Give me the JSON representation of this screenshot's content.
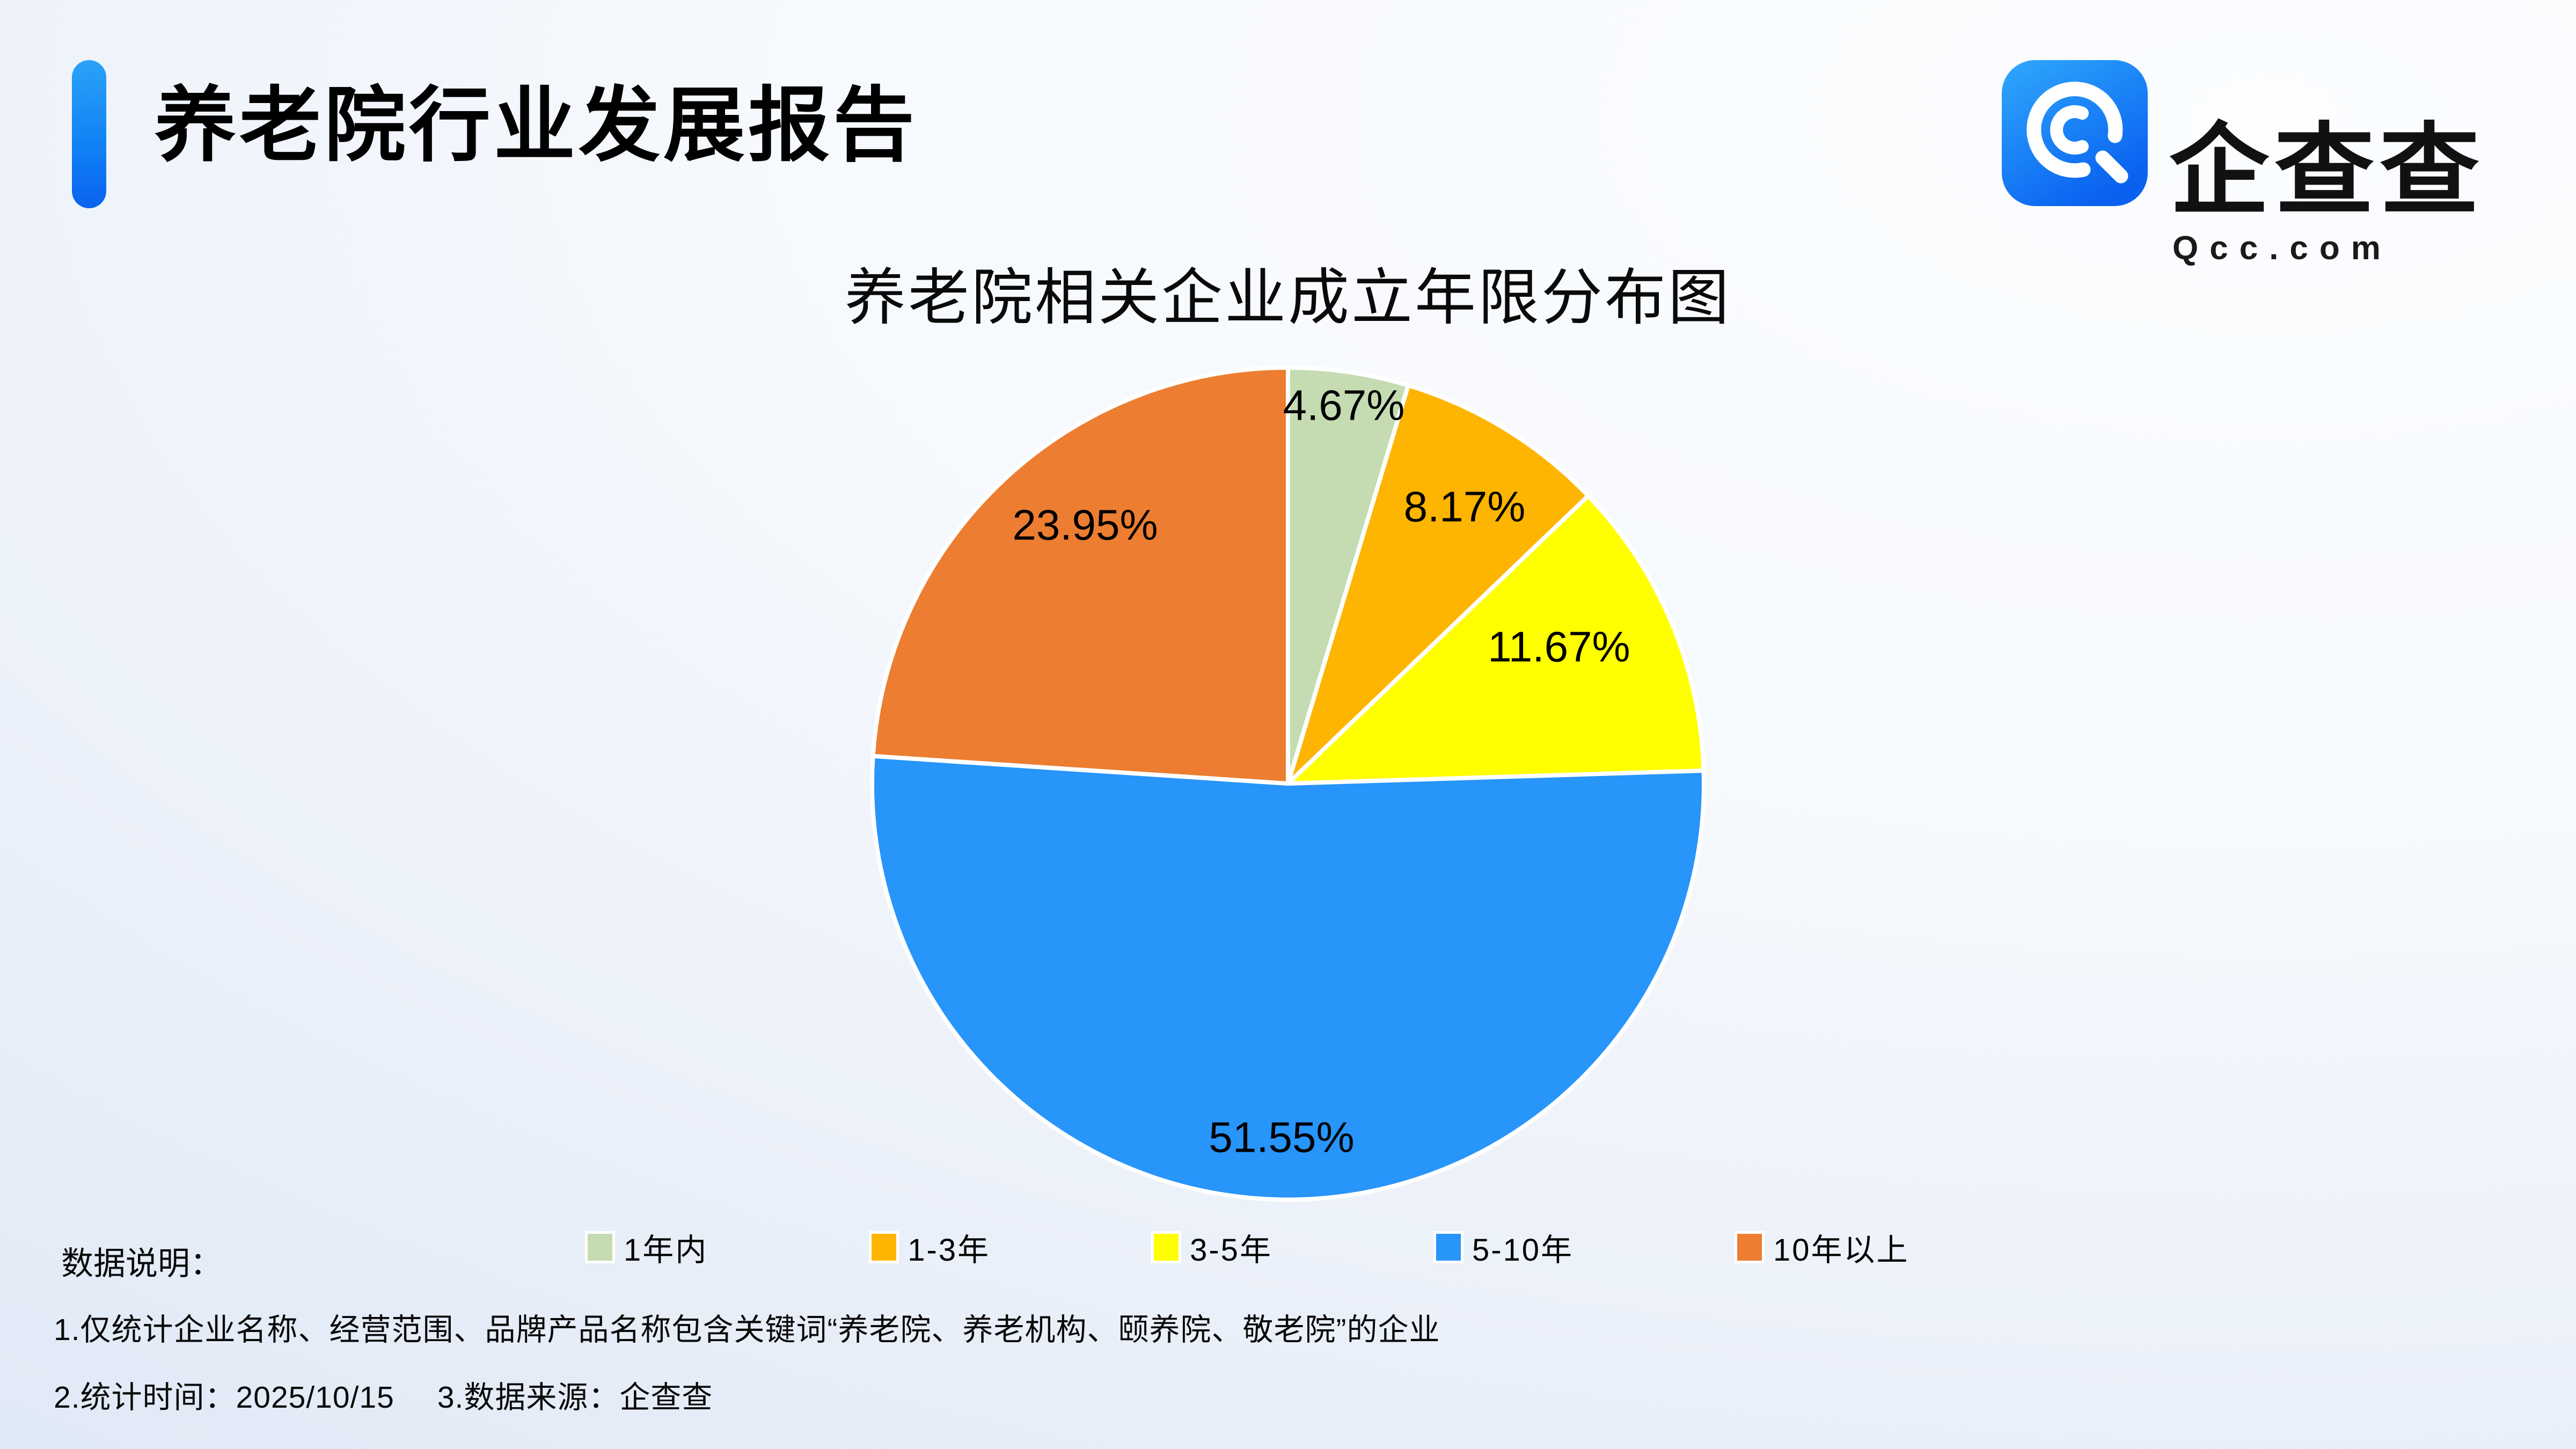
{
  "header": {
    "title": "养老院行业发展报告",
    "accent_color": "#1488F8"
  },
  "logo": {
    "brand": "企查查",
    "domain": "Qcc.com",
    "icon": "qcc-spiral-q-icon",
    "icon_color_top": "#2FA8FD",
    "icon_color_bottom": "#0961F0"
  },
  "chart_data": {
    "type": "pie",
    "title": "养老院相关企业成立年限分布图",
    "categories": [
      "1年内",
      "1-3年",
      "3-5年",
      "5-10年",
      "10年以上"
    ],
    "values": [
      4.67,
      8.17,
      11.67,
      51.55,
      23.95
    ],
    "data_labels": [
      "4.67%",
      "8.17%",
      "11.67%",
      "51.55%",
      "23.95%"
    ],
    "colors": [
      "#C5DCB2",
      "#FEB502",
      "#FFFF00",
      "#2795FA",
      "#EC7D31"
    ],
    "start_angle_deg": 0,
    "direction": "clockwise",
    "legend_position": "bottom",
    "label_color": "#000000",
    "slice_border_color": "#FFFFFF"
  },
  "notes": {
    "label": "数据说明：",
    "items": [
      "1.仅统计企业名称、经营范围、品牌产品名称包含关键词“养老院、养老机构、颐养院、敬老院”的企业",
      "2.统计时间：2025/10/15",
      "3.数据来源：企查查"
    ]
  }
}
